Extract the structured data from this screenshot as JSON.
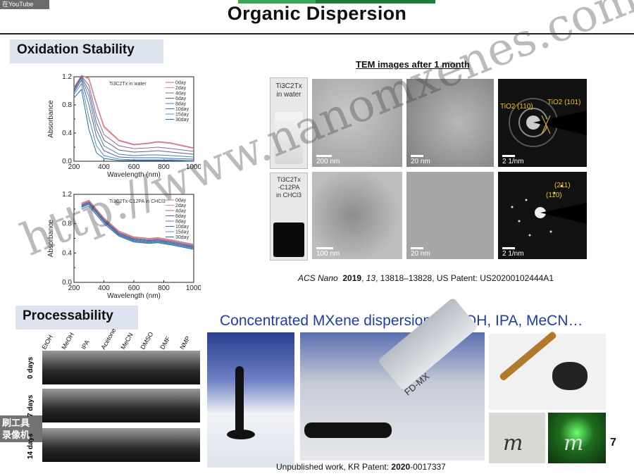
{
  "overlay": {
    "youtube_label": "在YouTube",
    "recorder_text": "刷工具 录像机"
  },
  "title": "Organic Dispersion",
  "sections": {
    "oxidation": "Oxidation Stability",
    "processability": "Processability"
  },
  "tem": {
    "heading": "TEM images after 1 month",
    "row1_label": [
      "Ti3C2Tx",
      "in water"
    ],
    "row2_label": [
      "Ti3C2Tx",
      "-C12PA",
      "in CHCl3"
    ],
    "scales": [
      "200 nm",
      "20 nm",
      "2 1/nm",
      "100 nm",
      "20 nm",
      "2 1/nm"
    ],
    "saed1": [
      "TiO2 (110)",
      "TiO2 (101)"
    ],
    "saed2": [
      "(211)",
      "(110)"
    ]
  },
  "citation1": {
    "journal": "ACS Nano",
    "year": "2019",
    "vol": "13",
    "rest": ", 13818–13828, US Patent: US20200102444A1"
  },
  "concentrated_heading": "Concentrated MXene dispersion in EtOH, IPA, MeCN…",
  "solvents": [
    "EtOH",
    "MeOH",
    "IPA",
    "Acetone",
    "MeCN",
    "DMSO",
    "DMF",
    "NMP"
  ],
  "days": [
    "0 days",
    "7 days",
    "14 days"
  ],
  "tube_label": "FD-MX",
  "citation2": {
    "prefix": "Unpublished work, KR Patent: ",
    "bold": "2020",
    "rest": "-0017337"
  },
  "page_number": "7",
  "watermark": "http://www.nanomxenes.com",
  "chart_data": [
    {
      "type": "line",
      "title": "Ti3C2Tx in water",
      "xlabel": "Wavelength (nm)",
      "ylabel": "Absorbance",
      "xlim": [
        200,
        1000
      ],
      "ylim": [
        0.0,
        1.2
      ],
      "xticks": [
        200,
        400,
        600,
        800,
        1000
      ],
      "yticks": [
        0.0,
        0.4,
        0.8,
        1.2
      ],
      "yticks_minor": [
        0.2,
        0.6,
        1.0
      ],
      "legend_position": "top-right",
      "x": [
        200,
        250,
        300,
        350,
        400,
        500,
        600,
        700,
        760,
        850,
        1000
      ],
      "series": [
        {
          "name": "0day",
          "color": "#c96a6a",
          "values": [
            1.05,
            1.22,
            1.18,
            0.82,
            0.5,
            0.3,
            0.24,
            0.26,
            0.28,
            0.26,
            0.19
          ]
        },
        {
          "name": "2day",
          "color": "#d98aa0",
          "values": [
            1.04,
            1.22,
            1.16,
            0.8,
            0.48,
            0.29,
            0.23,
            0.25,
            0.27,
            0.25,
            0.18
          ]
        },
        {
          "name": "4day",
          "color": "#8a6a9a",
          "values": [
            1.03,
            1.21,
            1.08,
            0.65,
            0.38,
            0.22,
            0.18,
            0.19,
            0.2,
            0.18,
            0.14
          ]
        },
        {
          "name": "6day",
          "color": "#6a5a90",
          "values": [
            1.02,
            1.2,
            1.0,
            0.55,
            0.3,
            0.16,
            0.13,
            0.14,
            0.15,
            0.13,
            0.1
          ]
        },
        {
          "name": "8day",
          "color": "#3a8aa0",
          "values": [
            1.0,
            1.18,
            0.92,
            0.45,
            0.22,
            0.1,
            0.08,
            0.09,
            0.09,
            0.08,
            0.06
          ]
        },
        {
          "name": "10day",
          "color": "#5a5ab0",
          "values": [
            0.98,
            1.15,
            0.8,
            0.35,
            0.15,
            0.06,
            0.05,
            0.05,
            0.05,
            0.04,
            0.03
          ]
        },
        {
          "name": "15day",
          "color": "#4a90c0",
          "values": [
            0.95,
            1.1,
            0.62,
            0.22,
            0.08,
            0.03,
            0.02,
            0.02,
            0.02,
            0.02,
            0.01
          ]
        },
        {
          "name": "30day",
          "color": "#2a6aa0",
          "values": [
            0.9,
            1.02,
            0.45,
            0.12,
            0.04,
            0.01,
            0.01,
            0.01,
            0.01,
            0.01,
            0.0
          ]
        }
      ]
    },
    {
      "type": "line",
      "title": "Ti3C2Tx-C12PA in CHCl3",
      "xlabel": "Wavelength (nm)",
      "ylabel": "Absorbance",
      "xlim": [
        200,
        1000
      ],
      "ylim": [
        0.0,
        1.2
      ],
      "xticks": [
        200,
        400,
        600,
        800,
        1000
      ],
      "yticks": [
        0.0,
        0.4,
        0.8,
        1.2
      ],
      "yticks_minor": [
        0.2,
        0.6,
        1.0
      ],
      "legend_position": "top-right",
      "x": [
        250,
        300,
        350,
        400,
        500,
        600,
        700,
        760,
        850,
        1000
      ],
      "series": [
        {
          "name": "0day",
          "color": "#c96a6a",
          "values": [
            1.08,
            1.12,
            1.0,
            0.88,
            0.7,
            0.62,
            0.6,
            0.61,
            0.58,
            0.52
          ]
        },
        {
          "name": "2day",
          "color": "#d98aa0",
          "values": [
            1.07,
            1.11,
            0.99,
            0.87,
            0.69,
            0.61,
            0.59,
            0.6,
            0.57,
            0.51
          ]
        },
        {
          "name": "4day",
          "color": "#8a6a9a",
          "values": [
            1.06,
            1.1,
            0.98,
            0.86,
            0.68,
            0.6,
            0.58,
            0.59,
            0.56,
            0.5
          ]
        },
        {
          "name": "6day",
          "color": "#6a5a90",
          "values": [
            1.05,
            1.09,
            0.97,
            0.85,
            0.67,
            0.59,
            0.57,
            0.58,
            0.55,
            0.49
          ]
        },
        {
          "name": "8day",
          "color": "#3a8aa0",
          "values": [
            1.04,
            1.08,
            0.96,
            0.84,
            0.66,
            0.58,
            0.56,
            0.57,
            0.54,
            0.48
          ]
        },
        {
          "name": "10day",
          "color": "#5a5ab0",
          "values": [
            1.03,
            1.07,
            0.95,
            0.83,
            0.65,
            0.57,
            0.55,
            0.56,
            0.53,
            0.47
          ]
        },
        {
          "name": "15day",
          "color": "#4a90c0",
          "values": [
            1.02,
            1.06,
            0.94,
            0.82,
            0.64,
            0.56,
            0.54,
            0.55,
            0.52,
            0.46
          ]
        },
        {
          "name": "30day",
          "color": "#2a6aa0",
          "values": [
            1.0,
            1.04,
            0.92,
            0.8,
            0.63,
            0.55,
            0.53,
            0.54,
            0.51,
            0.45
          ]
        }
      ]
    }
  ]
}
